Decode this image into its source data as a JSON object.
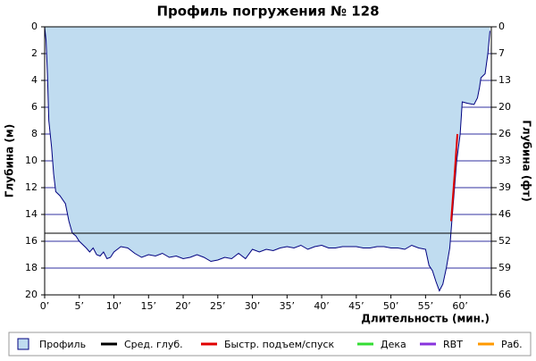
{
  "chart_data": {
    "type": "area",
    "title": "Профиль погружения № 128",
    "ylabel": "Глубина (м)",
    "y2label": "Глубина (фт)",
    "xlabel": "Длительность (мин.)",
    "ylim": [
      0,
      20
    ],
    "yticks": [
      0,
      2,
      4,
      6,
      8,
      10,
      12,
      14,
      16,
      18,
      20
    ],
    "y2lim": [
      0,
      65.62
    ],
    "y2ticks": [
      {
        "value": 0,
        "label": "0"
      },
      {
        "value": 6.56,
        "label": "7"
      },
      {
        "value": 13.12,
        "label": "13"
      },
      {
        "value": 19.69,
        "label": "20"
      },
      {
        "value": 26.25,
        "label": "26"
      },
      {
        "value": 32.81,
        "label": "33"
      },
      {
        "value": 39.37,
        "label": "39"
      },
      {
        "value": 45.93,
        "label": "46"
      },
      {
        "value": 52.49,
        "label": "52"
      },
      {
        "value": 59.06,
        "label": "59"
      },
      {
        "value": 65.62,
        "label": "66"
      }
    ],
    "xlim": [
      0,
      64.5
    ],
    "xticks": [
      {
        "value": 0,
        "label": "0’"
      },
      {
        "value": 5,
        "label": "5’"
      },
      {
        "value": 10,
        "label": "10’"
      },
      {
        "value": 15,
        "label": "15’"
      },
      {
        "value": 20,
        "label": "20’"
      },
      {
        "value": 25,
        "label": "25’"
      },
      {
        "value": 30,
        "label": "30’"
      },
      {
        "value": 35,
        "label": "35’"
      },
      {
        "value": 40,
        "label": "40’"
      },
      {
        "value": 45,
        "label": "45’"
      },
      {
        "value": 50,
        "label": "50’"
      },
      {
        "value": 55,
        "label": "55’"
      },
      {
        "value": 60,
        "label": "60’"
      }
    ],
    "grid": true,
    "series": [
      {
        "name": "Профиль",
        "color": "#c0dcf0",
        "x": [
          0,
          0.2,
          0.4,
          0.6,
          1,
          1.3,
          1.6,
          2.2,
          3,
          3.5,
          4,
          4.5,
          5,
          6,
          6.5,
          7,
          7.5,
          8,
          8.5,
          9,
          9.5,
          10,
          11,
          12,
          13,
          14,
          15,
          16,
          17,
          18,
          19,
          20,
          21,
          22,
          23,
          24,
          25,
          26,
          27,
          28,
          29,
          30,
          31,
          32,
          33,
          34,
          35,
          36,
          37,
          38,
          39,
          40,
          41,
          42,
          43,
          44,
          45,
          46,
          47,
          48,
          49,
          50,
          51,
          52,
          53,
          54,
          55,
          55.5,
          56,
          56.5,
          57,
          57.5,
          58,
          58.5,
          58.8,
          59.5,
          60,
          60.3,
          61,
          62,
          62.5,
          62.8,
          63,
          63.6,
          64,
          64.3
        ],
        "values": [
          0,
          1,
          3.5,
          7,
          9,
          11,
          12.3,
          12.6,
          13.2,
          14.5,
          15.4,
          15.6,
          16,
          16.5,
          16.8,
          16.5,
          17,
          17.1,
          16.8,
          17.3,
          17.2,
          16.8,
          16.4,
          16.5,
          16.9,
          17.2,
          17,
          17.1,
          16.9,
          17.2,
          17.1,
          17.3,
          17.2,
          17,
          17.2,
          17.5,
          17.4,
          17.2,
          17.3,
          16.9,
          17.3,
          16.6,
          16.8,
          16.6,
          16.7,
          16.5,
          16.4,
          16.5,
          16.3,
          16.6,
          16.4,
          16.3,
          16.5,
          16.5,
          16.4,
          16.4,
          16.4,
          16.5,
          16.5,
          16.4,
          16.4,
          16.5,
          16.5,
          16.6,
          16.3,
          16.5,
          16.6,
          17.8,
          18.2,
          19,
          19.7,
          19.2,
          18,
          16.5,
          14.5,
          10,
          8,
          5.6,
          5.7,
          5.8,
          5.3,
          4.5,
          3.8,
          3.5,
          2,
          0.3
        ]
      },
      {
        "name": "Сред. глуб.",
        "color": "#000000",
        "value": 15.4
      },
      {
        "name": "Быстр. подъем/спуск",
        "color": "#e00000",
        "x": [
          58.7,
          59.2,
          59.6
        ],
        "values": [
          14.5,
          11,
          8
        ]
      },
      {
        "name": "Дека",
        "color": "#33dd33",
        "x": [],
        "values": []
      },
      {
        "name": "RBT",
        "color": "#8833dd",
        "x": [],
        "values": []
      },
      {
        "name": "Раб.",
        "color": "#ff9900",
        "x": [],
        "values": []
      }
    ]
  }
}
